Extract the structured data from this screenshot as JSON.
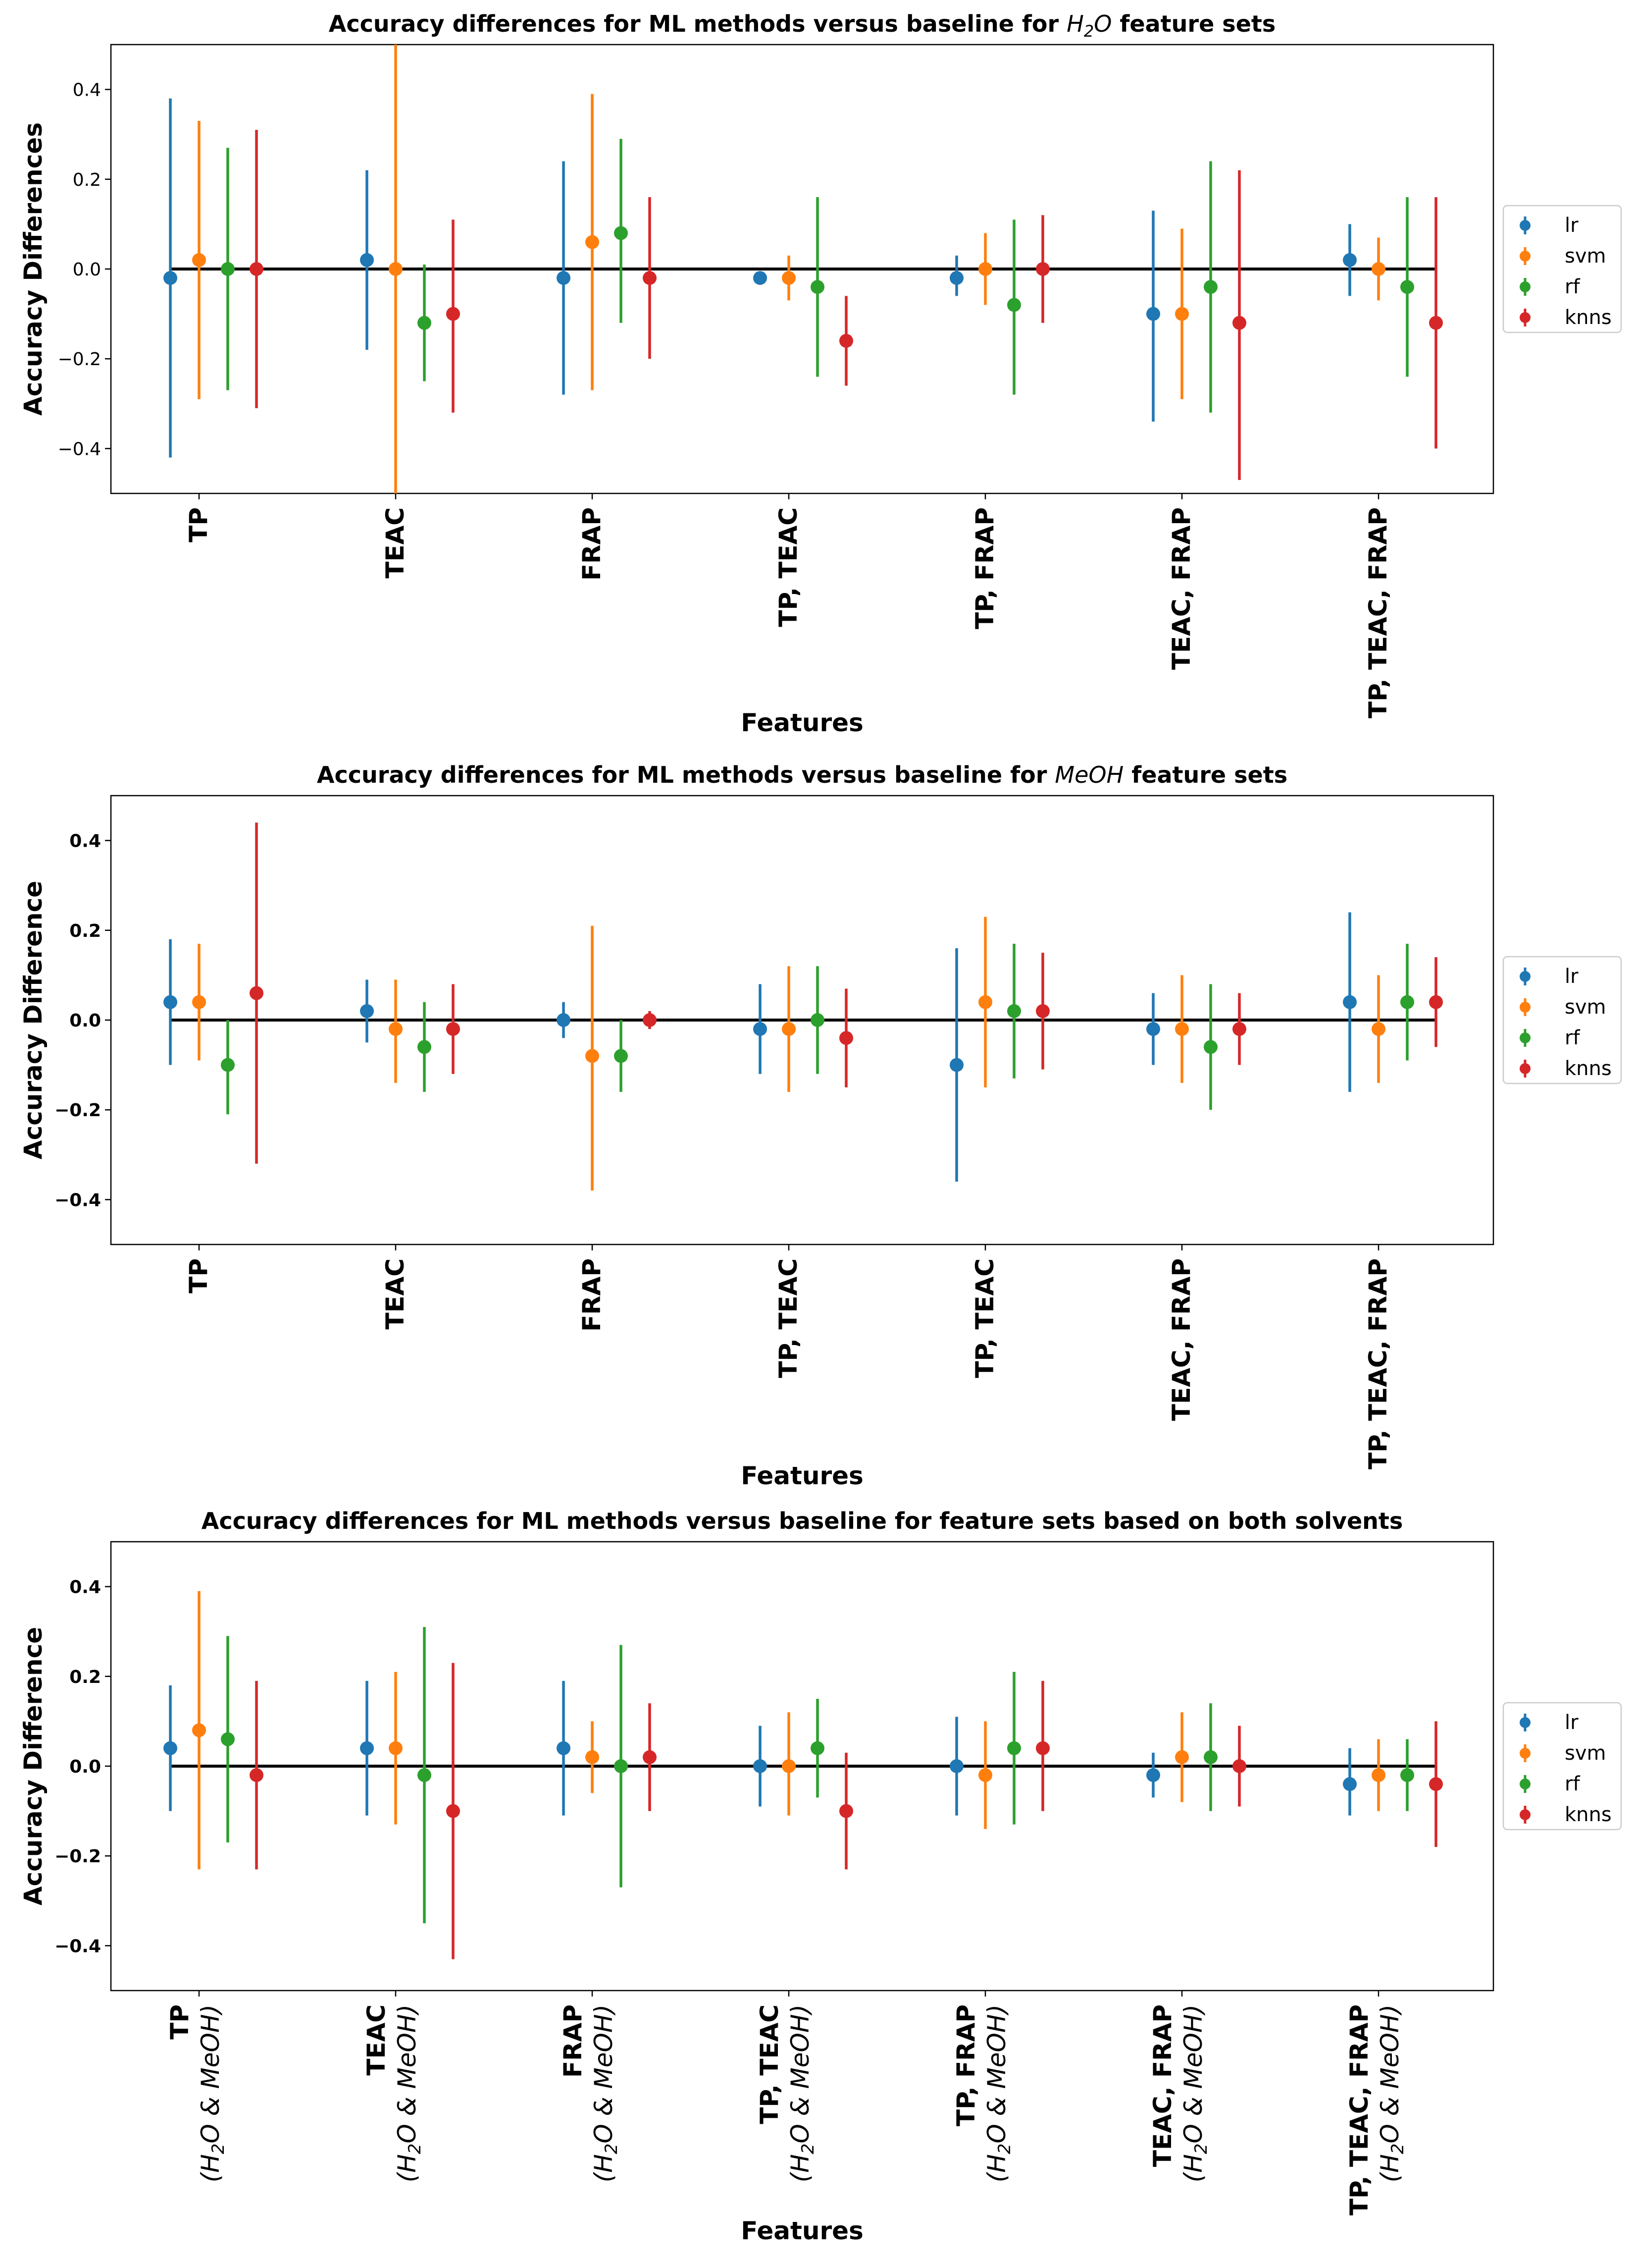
{
  "chart_data": [
    {
      "type": "errorbar",
      "title": "Accuracy differences for ML methods versus baseline for H2O feature sets",
      "title_html": [
        "Accuracy differences for ML methods versus baseline for ",
        "H",
        "2",
        "O",
        " feature sets"
      ],
      "xlabel": "Features",
      "ylabel": "Accuracy Differences",
      "ytick_bold": false,
      "ylim": [
        -0.5,
        0.5
      ],
      "yticks": [
        -0.4,
        -0.2,
        0.0,
        0.2,
        0.4
      ],
      "ytick_labels": [
        "−0.4",
        "−0.2",
        "0.0",
        "0.2",
        "0.4"
      ],
      "baseline": 0,
      "legend_position": "right",
      "categories": [
        "TP",
        "TEAC",
        "FRAP",
        "TP, TEAC",
        "TP, FRAP",
        "TEAC, FRAP",
        "TP, TEAC, FRAP"
      ],
      "category_sub": [],
      "series": [
        {
          "name": "lr",
          "color": "#1f77b4",
          "values": [
            -0.02,
            0.02,
            -0.02,
            -0.02,
            -0.02,
            -0.1,
            0.02
          ],
          "lower": [
            -0.42,
            -0.18,
            -0.28,
            -0.03,
            -0.06,
            -0.34,
            -0.06
          ],
          "upper": [
            0.38,
            0.22,
            0.24,
            -0.01,
            0.03,
            0.13,
            0.1
          ]
        },
        {
          "name": "svm",
          "color": "#ff7f0e",
          "values": [
            0.02,
            0.0,
            0.06,
            -0.02,
            0.0,
            -0.1,
            0.0
          ],
          "lower": [
            -0.29,
            -0.5,
            -0.27,
            -0.07,
            -0.08,
            -0.29,
            -0.07
          ],
          "upper": [
            0.33,
            0.5,
            0.39,
            0.03,
            0.08,
            0.09,
            0.07
          ]
        },
        {
          "name": "rf",
          "color": "#2ca02c",
          "values": [
            0.0,
            -0.12,
            0.08,
            -0.04,
            -0.08,
            -0.04,
            -0.04
          ],
          "lower": [
            -0.27,
            -0.25,
            -0.12,
            -0.24,
            -0.28,
            -0.32,
            -0.24
          ],
          "upper": [
            0.27,
            0.01,
            0.29,
            0.16,
            0.11,
            0.24,
            0.16
          ]
        },
        {
          "name": "knns",
          "color": "#d62728",
          "values": [
            0.0,
            -0.1,
            -0.02,
            -0.16,
            0.0,
            -0.12,
            -0.12
          ],
          "lower": [
            -0.31,
            -0.32,
            -0.2,
            -0.26,
            -0.12,
            -0.47,
            -0.4
          ],
          "upper": [
            0.31,
            0.11,
            0.16,
            -0.06,
            0.12,
            0.22,
            0.16
          ]
        }
      ]
    },
    {
      "type": "errorbar",
      "title": "Accuracy differences for ML methods versus baseline for MeOH feature sets",
      "title_html": [
        "Accuracy differences for ML methods versus baseline for ",
        "MeOH",
        "",
        "",
        " feature sets"
      ],
      "xlabel": "Features",
      "ylabel": "Accuracy Difference",
      "ytick_bold": true,
      "ylim": [
        -0.5,
        0.5
      ],
      "yticks": [
        -0.4,
        -0.2,
        0.0,
        0.2,
        0.4
      ],
      "ytick_labels": [
        "−0.4",
        "−0.2",
        "0.0",
        "0.2",
        "0.4"
      ],
      "baseline": 0,
      "legend_position": "right",
      "categories": [
        "TP",
        "TEAC",
        "FRAP",
        "TP, TEAC",
        "TP, TEAC",
        "TEAC, FRAP",
        "TP, TEAC, FRAP"
      ],
      "category_sub": [],
      "series": [
        {
          "name": "lr",
          "color": "#1f77b4",
          "values": [
            0.04,
            0.02,
            0.0,
            -0.02,
            -0.1,
            -0.02,
            0.04
          ],
          "lower": [
            -0.1,
            -0.05,
            -0.04,
            -0.12,
            -0.36,
            -0.1,
            -0.16
          ],
          "upper": [
            0.18,
            0.09,
            0.04,
            0.08,
            0.16,
            0.06,
            0.24
          ]
        },
        {
          "name": "svm",
          "color": "#ff7f0e",
          "values": [
            0.04,
            -0.02,
            -0.08,
            -0.02,
            0.04,
            -0.02,
            -0.02
          ],
          "lower": [
            -0.09,
            -0.14,
            -0.38,
            -0.16,
            -0.15,
            -0.14,
            -0.14
          ],
          "upper": [
            0.17,
            0.09,
            0.21,
            0.12,
            0.23,
            0.1,
            0.1
          ]
        },
        {
          "name": "rf",
          "color": "#2ca02c",
          "values": [
            -0.1,
            -0.06,
            -0.08,
            0.0,
            0.02,
            -0.06,
            0.04
          ],
          "lower": [
            -0.21,
            -0.16,
            -0.16,
            -0.12,
            -0.13,
            -0.2,
            -0.09
          ],
          "upper": [
            0.0,
            0.04,
            0.0,
            0.12,
            0.17,
            0.08,
            0.17
          ]
        },
        {
          "name": "knns",
          "color": "#d62728",
          "values": [
            0.06,
            -0.02,
            0.0,
            -0.04,
            0.02,
            -0.02,
            0.04
          ],
          "lower": [
            -0.32,
            -0.12,
            -0.02,
            -0.15,
            -0.11,
            -0.1,
            -0.06
          ],
          "upper": [
            0.44,
            0.08,
            0.02,
            0.07,
            0.15,
            0.06,
            0.14
          ]
        }
      ]
    },
    {
      "type": "errorbar",
      "title": "Accuracy differences for ML methods versus baseline for feature sets based on both solvents",
      "title_html": [
        "Accuracy differences for ML methods versus baseline for feature sets based on both solvents",
        "",
        "",
        "",
        ""
      ],
      "xlabel": "Features",
      "ylabel": "Accuracy Difference",
      "ytick_bold": true,
      "ylim": [
        -0.5,
        0.5
      ],
      "yticks": [
        -0.4,
        -0.2,
        0.0,
        0.2,
        0.4
      ],
      "ytick_labels": [
        "−0.4",
        "−0.2",
        "0.0",
        "0.2",
        "0.4"
      ],
      "baseline": 0,
      "legend_position": "right",
      "categories": [
        "TP",
        "TEAC",
        "FRAP",
        "TP, TEAC",
        "TP, FRAP",
        "TEAC, FRAP",
        "TP, TEAC, FRAP"
      ],
      "category_sub": [
        "(H2O & MeOH)",
        "(H2O & MeOH)",
        "(H2O & MeOH)",
        "(H2O & MeOH)",
        "(H2O & MeOH)",
        "(H2O & MeOH)",
        "(H2O & MeOH)"
      ],
      "series": [
        {
          "name": "lr",
          "color": "#1f77b4",
          "values": [
            0.04,
            0.04,
            0.04,
            0.0,
            0.0,
            -0.02,
            -0.04
          ],
          "lower": [
            -0.1,
            -0.11,
            -0.11,
            -0.09,
            -0.11,
            -0.07,
            -0.11
          ],
          "upper": [
            0.18,
            0.19,
            0.19,
            0.09,
            0.11,
            0.03,
            0.04
          ]
        },
        {
          "name": "svm",
          "color": "#ff7f0e",
          "values": [
            0.08,
            0.04,
            0.02,
            0.0,
            -0.02,
            0.02,
            -0.02
          ],
          "lower": [
            -0.23,
            -0.13,
            -0.06,
            -0.11,
            -0.14,
            -0.08,
            -0.1
          ],
          "upper": [
            0.39,
            0.21,
            0.1,
            0.12,
            0.1,
            0.12,
            0.06
          ]
        },
        {
          "name": "rf",
          "color": "#2ca02c",
          "values": [
            0.06,
            -0.02,
            0.0,
            0.04,
            0.04,
            0.02,
            -0.02
          ],
          "lower": [
            -0.17,
            -0.35,
            -0.27,
            -0.07,
            -0.13,
            -0.1,
            -0.1
          ],
          "upper": [
            0.29,
            0.31,
            0.27,
            0.15,
            0.21,
            0.14,
            0.06
          ]
        },
        {
          "name": "knns",
          "color": "#d62728",
          "values": [
            -0.02,
            -0.1,
            0.02,
            -0.1,
            0.04,
            0.0,
            -0.04
          ],
          "lower": [
            -0.23,
            -0.43,
            -0.1,
            -0.23,
            -0.1,
            -0.09,
            -0.18
          ],
          "upper": [
            0.19,
            0.23,
            0.14,
            0.03,
            0.19,
            0.09,
            0.1
          ]
        }
      ]
    }
  ]
}
